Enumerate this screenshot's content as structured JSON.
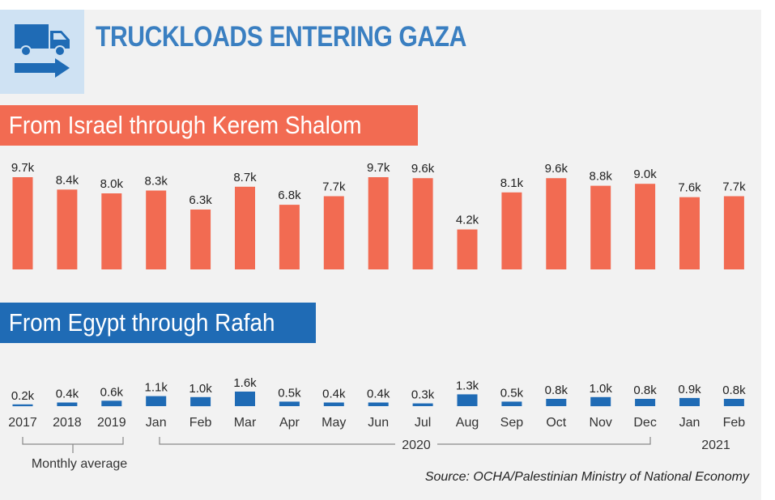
{
  "header": {
    "title": "TRUCKLOADS ENTERING GAZA"
  },
  "colors": {
    "israel": "#f26b52",
    "egypt": "#1f6bb5",
    "title": "#3a7fc1",
    "icon_bg": "#cfe2f3"
  },
  "icons": [
    "truck-icon",
    "arrow-right-icon"
  ],
  "chart_data": [
    {
      "type": "bar",
      "title": "From Israel through Kerem Shalom",
      "categories": [
        "2017",
        "2018",
        "2019",
        "Jan",
        "Feb",
        "Mar",
        "Apr",
        "May",
        "Jun",
        "Jul",
        "Aug",
        "Sep",
        "Oct",
        "Nov",
        "Dec",
        "Jan",
        "Feb"
      ],
      "values": [
        9.7,
        8.4,
        8.0,
        8.3,
        6.3,
        8.7,
        6.8,
        7.7,
        9.7,
        9.6,
        4.2,
        8.1,
        9.6,
        8.8,
        9.0,
        7.6,
        7.7
      ],
      "labels": [
        "9.7k",
        "8.4k",
        "8.0k",
        "8.3k",
        "6.3k",
        "8.7k",
        "6.8k",
        "7.7k",
        "9.7k",
        "9.6k",
        "4.2k",
        "8.1k",
        "9.6k",
        "8.8k",
        "9.0k",
        "7.6k",
        "7.7k"
      ],
      "unit": "thousand truckloads"
    },
    {
      "type": "bar",
      "title": "From Egypt through Rafah",
      "categories": [
        "2017",
        "2018",
        "2019",
        "Jan",
        "Feb",
        "Mar",
        "Apr",
        "May",
        "Jun",
        "Jul",
        "Aug",
        "Sep",
        "Oct",
        "Nov",
        "Dec",
        "Jan",
        "Feb"
      ],
      "values": [
        0.2,
        0.4,
        0.6,
        1.1,
        1.0,
        1.6,
        0.5,
        0.4,
        0.4,
        0.3,
        1.3,
        0.5,
        0.8,
        1.0,
        0.8,
        0.9,
        0.8
      ],
      "labels": [
        "0.2k",
        "0.4k",
        "0.6k",
        "1.1k",
        "1.0k",
        "1.6k",
        "0.5k",
        "0.4k",
        "0.4k",
        "0.3k",
        "1.3k",
        "0.5k",
        "0.8k",
        "1.0k",
        "0.8k",
        "0.9k",
        "0.8k"
      ],
      "unit": "thousand truckloads"
    }
  ],
  "groups": {
    "monthly_average": "Monthly average",
    "year_2020": "2020",
    "year_2021": "2021"
  },
  "source": "Source: OCHA/Palestinian Ministry of National Economy"
}
